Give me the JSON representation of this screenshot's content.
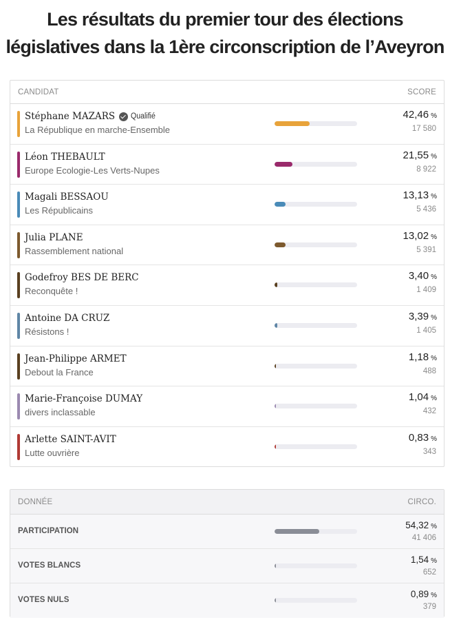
{
  "title": "Les résultats du premier tour des élections législatives dans la 1ère circonscription de l’Aveyron",
  "candidates_table": {
    "header_left": "CANDIDAT",
    "header_right": "SCORE",
    "qualified_label": "Qualifié",
    "unit": "%",
    "rows": [
      {
        "name": "Stéphane MAZARS",
        "party": "La République en marche-Ensemble",
        "pct": "42,46",
        "pct_value": 42.46,
        "votes": "17 580",
        "color": "#e8a33a",
        "qualified": true
      },
      {
        "name": "Léon THEBAULT",
        "party": "Europe Ecologie-Les Verts-Nupes",
        "pct": "21,55",
        "pct_value": 21.55,
        "votes": "8 922",
        "color": "#9a2a6b",
        "qualified": false
      },
      {
        "name": "Magali BESSAOU",
        "party": "Les Républicains",
        "pct": "13,13",
        "pct_value": 13.13,
        "votes": "5 436",
        "color": "#4a8bb8",
        "qualified": false
      },
      {
        "name": "Julia PLANE",
        "party": "Rassemblement national",
        "pct": "13,02",
        "pct_value": 13.02,
        "votes": "5 391",
        "color": "#7d5a2e",
        "qualified": false
      },
      {
        "name": "Godefroy BES DE BERC",
        "party": "Reconquête !",
        "pct": "3,40",
        "pct_value": 3.4,
        "votes": "1 409",
        "color": "#5a4020",
        "qualified": false
      },
      {
        "name": "Antoine DA CRUZ",
        "party": "Résistons !",
        "pct": "3,39",
        "pct_value": 3.39,
        "votes": "1 405",
        "color": "#5f86a6",
        "qualified": false
      },
      {
        "name": "Jean-Philippe ARMET",
        "party": "Debout la France",
        "pct": "1,18",
        "pct_value": 1.18,
        "votes": "488",
        "color": "#5a4020",
        "qualified": false
      },
      {
        "name": "Marie-Françoise DUMAY",
        "party": "divers inclassable",
        "pct": "1,04",
        "pct_value": 1.04,
        "votes": "432",
        "color": "#9b8ab0",
        "qualified": false
      },
      {
        "name": "Arlette SAINT-AVIT",
        "party": "Lutte ouvrière",
        "pct": "0,83",
        "pct_value": 0.83,
        "votes": "343",
        "color": "#b03a34",
        "qualified": false
      }
    ]
  },
  "stats_table": {
    "header_left": "DONNÉE",
    "header_right": "CIRCO.",
    "unit": "%",
    "rows": [
      {
        "label": "PARTICIPATION",
        "pct": "54,32",
        "pct_value": 54.32,
        "votes": "41 406",
        "color": "#8a8d96"
      },
      {
        "label": "VOTES BLANCS",
        "pct": "1,54",
        "pct_value": 1.54,
        "votes": "652",
        "color": "#8a8d96"
      },
      {
        "label": "VOTES NULS",
        "pct": "0,89",
        "pct_value": 0.89,
        "votes": "379",
        "color": "#8a8d96"
      }
    ]
  }
}
